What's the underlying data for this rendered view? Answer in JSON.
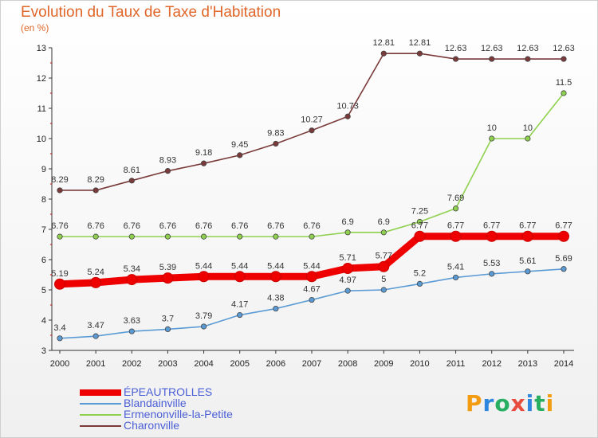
{
  "header": {
    "title": "Evolution du Taux de Taxe d'Habitation",
    "unit": "(en %)"
  },
  "logo": {
    "letters": [
      "P",
      "r",
      "o",
      "x",
      "i",
      "t",
      "i"
    ],
    "colors": [
      "#f39c12",
      "#2e86de",
      "#27ae60",
      "#e74c3c",
      "#2e86de",
      "#27ae60",
      "#f39c12"
    ]
  },
  "chart_data": {
    "type": "line",
    "x": [
      "2000",
      "2001",
      "2002",
      "2003",
      "2004",
      "2005",
      "2006",
      "2007",
      "2008",
      "2009",
      "2010",
      "2011",
      "2012",
      "2013",
      "2014"
    ],
    "ylim": [
      3,
      13
    ],
    "yticks": [
      "3",
      "4",
      "5",
      "6",
      "7",
      "8",
      "9",
      "10",
      "11",
      "12",
      "13"
    ],
    "grid": false,
    "legend": "bottom-left",
    "series": [
      {
        "name": "ÉPEAUTROLLES",
        "color": "#ee0000",
        "emphasis": true,
        "values": [
          5.19,
          5.24,
          5.34,
          5.39,
          5.44,
          5.44,
          5.44,
          5.44,
          5.71,
          5.77,
          6.77,
          6.77,
          6.77,
          6.77,
          6.77
        ],
        "labels": [
          "5.19",
          "5.24",
          "5.34",
          "5.39",
          "5.44",
          "5.44",
          "5.44",
          "5.44",
          "5.71",
          "5.77",
          "6.77",
          "6.77",
          "6.77",
          "6.77",
          "6.77"
        ]
      },
      {
        "name": "Blandainville",
        "color": "#5b9bd5",
        "values": [
          3.4,
          3.47,
          3.63,
          3.7,
          3.79,
          4.17,
          4.38,
          4.67,
          4.97,
          5,
          5.2,
          5.41,
          5.53,
          5.61,
          5.69
        ],
        "labels": [
          "3.4",
          "3.47",
          "3.63",
          "3.7",
          "3.79",
          "4.17",
          "4.38",
          "4.67",
          "4.97",
          "5",
          "5.2",
          "5.41",
          "5.53",
          "5.61",
          "5.69"
        ]
      },
      {
        "name": "Ermenonville-la-Petite",
        "color": "#8fd14f",
        "values": [
          6.76,
          6.76,
          6.76,
          6.76,
          6.76,
          6.76,
          6.76,
          6.76,
          6.9,
          6.9,
          7.25,
          7.69,
          10,
          10,
          11.5
        ],
        "labels": [
          "6.76",
          "6.76",
          "6.76",
          "6.76",
          "6.76",
          "6.76",
          "6.76",
          "6.76",
          "6.9",
          "6.9",
          "7.25",
          "7.69",
          "10",
          "10",
          "11.5"
        ]
      },
      {
        "name": "Charonville",
        "color": "#7a3a3a",
        "values": [
          8.29,
          8.29,
          8.61,
          8.93,
          9.18,
          9.45,
          9.83,
          10.27,
          10.73,
          12.81,
          12.81,
          12.63,
          12.63,
          12.63,
          12.63
        ],
        "labels": [
          "8.29",
          "8.29",
          "8.61",
          "8.93",
          "9.18",
          "9.45",
          "9.83",
          "10.27",
          "10.73",
          "12.81",
          "12.81",
          "12.63",
          "12.63",
          "12.63",
          "12.63"
        ]
      }
    ]
  }
}
